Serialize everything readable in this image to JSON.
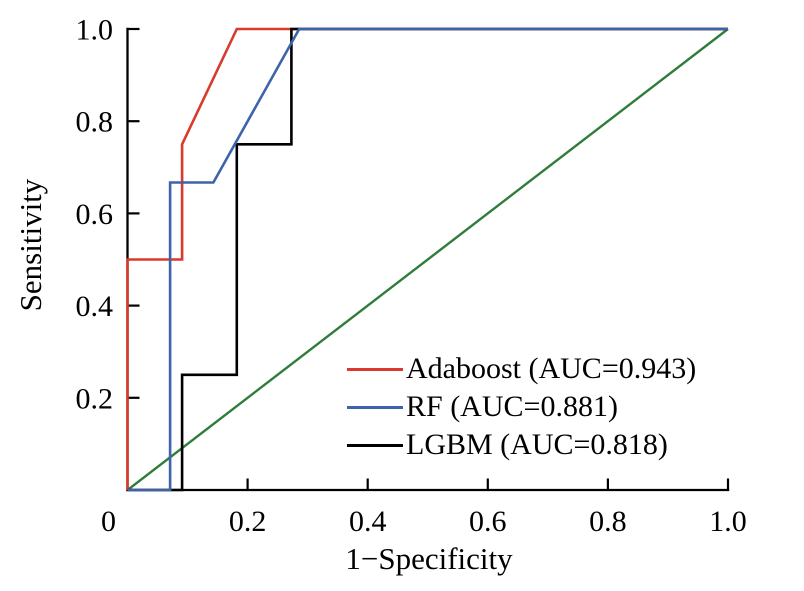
{
  "chart_data": {
    "type": "line",
    "subtype": "roc-curve",
    "xlabel": "1−Specificity",
    "ylabel": "Sensitivity",
    "xlim": [
      0,
      1
    ],
    "ylim": [
      0,
      1
    ],
    "grid": false,
    "legend_position": "inside-lower-right",
    "x_ticks": [
      0,
      0.2,
      0.4,
      0.6,
      0.8,
      1.0
    ],
    "x_tick_labels": [
      "0",
      "0.2",
      "0.4",
      "0.6",
      "0.8",
      "1.0"
    ],
    "y_ticks": [
      0.2,
      0.4,
      0.6,
      0.8,
      1.0
    ],
    "y_tick_labels": [
      "0.2",
      "0.4",
      "0.6",
      "0.8",
      "1.0"
    ],
    "axis_color": "#000000",
    "series": [
      {
        "name": "Adaboost",
        "legend_label": "Adaboost (AUC=0.943)",
        "auc": 0.943,
        "color": "#d93a2b",
        "x": [
          0,
          0,
          0.091,
          0.091,
          0.182,
          1
        ],
        "y": [
          0,
          0.5,
          0.5,
          0.75,
          1,
          1
        ]
      },
      {
        "name": "RF",
        "legend_label": "RF (AUC=0.881)",
        "auc": 0.881,
        "color": "#3d63a8",
        "x": [
          0,
          0.071,
          0.071,
          0.143,
          0.286,
          1
        ],
        "y": [
          0,
          0,
          0.667,
          0.667,
          1,
          1
        ]
      },
      {
        "name": "LGBM",
        "legend_label": "LGBM (AUC=0.818)",
        "auc": 0.818,
        "color": "#000000",
        "x": [
          0,
          0.091,
          0.091,
          0.182,
          0.182,
          0.273,
          0.273,
          1
        ],
        "y": [
          0,
          0,
          0.25,
          0.25,
          0.75,
          0.75,
          1,
          1
        ]
      }
    ],
    "reference_line": {
      "name": "chance-diagonal",
      "color": "#2e7d3a",
      "x": [
        0,
        1
      ],
      "y": [
        0,
        1
      ]
    }
  }
}
